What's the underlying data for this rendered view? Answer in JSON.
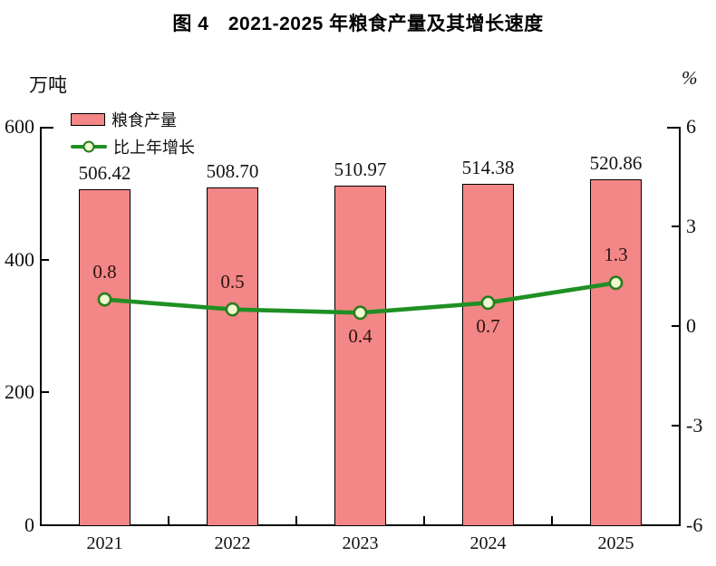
{
  "title": "图 4　2021-2025 年粮食产量及其增长速度",
  "chart_data": {
    "type": "bar",
    "subtype": "bar-line-combo",
    "title": "图 4　2021-2025 年粮食产量及其增长速度",
    "categories": [
      "2021",
      "2022",
      "2023",
      "2024",
      "2025"
    ],
    "series": [
      {
        "name": "粮食产量",
        "type": "bar",
        "axis": "left",
        "values": [
          506.42,
          508.7,
          510.97,
          514.38,
          520.86
        ],
        "labels": [
          "506.42",
          "508.70",
          "510.97",
          "514.38",
          "520.86"
        ],
        "fill_color": "#f38686",
        "border_color": "#000000"
      },
      {
        "name": "比上年增长",
        "type": "line",
        "axis": "right",
        "values": [
          0.8,
          0.5,
          0.4,
          0.7,
          1.3
        ],
        "labels": [
          "0.8",
          "0.5",
          "0.4",
          "0.7",
          "1.3"
        ],
        "label_positions": [
          "above",
          "above",
          "below",
          "below",
          "above"
        ],
        "line_color": "#1f9023",
        "marker_fill": "#eff9d0",
        "marker_border": "#2a7d1e"
      }
    ],
    "left_axis": {
      "unit": "万吨",
      "min": 0,
      "max": 600,
      "ticks": [
        600,
        400,
        200,
        0
      ]
    },
    "right_axis": {
      "unit": "%",
      "min": -6,
      "max": 6,
      "ticks": [
        6,
        3,
        0,
        -3,
        -6
      ]
    },
    "legend_position": "top-left-inside",
    "grid": false
  }
}
